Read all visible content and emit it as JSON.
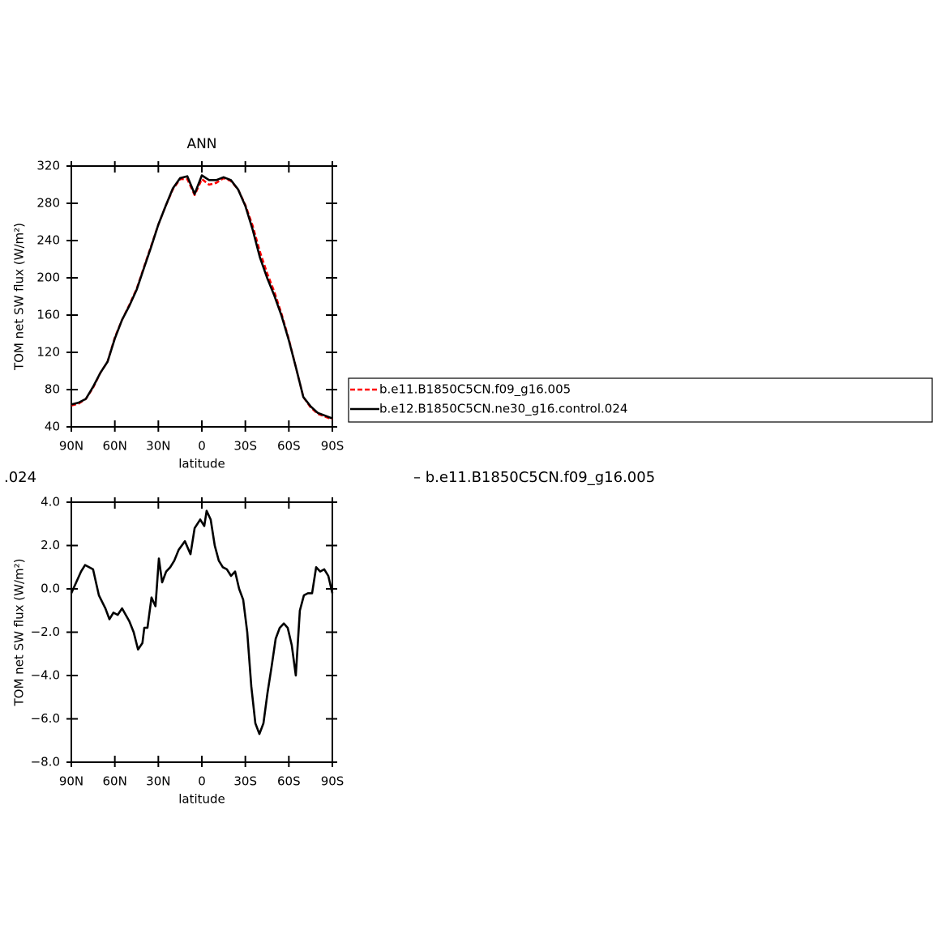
{
  "chart_data": [
    {
      "type": "line",
      "title": "ANN",
      "xlabel": "latitude",
      "ylabel": "TOM net SW flux (W/m²)",
      "x": [
        90,
        85,
        80,
        75,
        70,
        65,
        60,
        55,
        50,
        45,
        40,
        35,
        30,
        25,
        20,
        15,
        10,
        5,
        0,
        -5,
        -10,
        -15,
        -20,
        -25,
        -30,
        -35,
        -40,
        -45,
        -50,
        -55,
        -60,
        -65,
        -70,
        -75,
        -80,
        -85,
        -90
      ],
      "series": [
        {
          "name": "b.e11.B1850C5CN.f09_g16.005",
          "color": "#ff0000",
          "dash": true,
          "values": [
            63,
            65,
            70,
            82,
            98,
            110,
            136,
            155,
            171,
            188,
            211,
            234,
            257,
            277,
            295,
            306,
            306,
            289,
            306,
            300,
            302,
            307,
            304,
            295,
            278,
            256,
            228,
            205,
            185,
            161,
            134,
            103,
            72,
            61,
            54,
            51,
            48
          ]
        },
        {
          "name": "b.e12.B1850C5CN.ne30_g16.control.024",
          "color": "#000000",
          "dash": false,
          "values": [
            64,
            66,
            70,
            83,
            98,
            110,
            135,
            155,
            170,
            187,
            210,
            233,
            257,
            277,
            296,
            307,
            309,
            290,
            310,
            305,
            305,
            308,
            305,
            295,
            277,
            252,
            222,
            200,
            181,
            159,
            133,
            103,
            72,
            62,
            55,
            52,
            49
          ]
        }
      ],
      "xlim": [
        90,
        -90
      ],
      "xticks": [
        {
          "value": 90,
          "label": "90N"
        },
        {
          "value": 60,
          "label": "60N"
        },
        {
          "value": 30,
          "label": "30N"
        },
        0,
        {
          "value": -30,
          "label": "30S"
        },
        {
          "value": -60,
          "label": "60S"
        },
        {
          "value": -90,
          "label": "90S"
        }
      ],
      "ylim": [
        40,
        320
      ],
      "yticks": [
        40,
        80,
        120,
        160,
        200,
        240,
        280,
        320
      ]
    },
    {
      "type": "line",
      "xlabel": "latitude",
      "ylabel": "TOM net SW flux (W/m²)",
      "annotations": [
        ".024",
        "– b.e11.B1850C5CN.f09_g16.005"
      ],
      "x": [
        90,
        83.3,
        80.5,
        75,
        73,
        71,
        66.5,
        63.7,
        61,
        58,
        55,
        52.5,
        50,
        47,
        44,
        41,
        39.7,
        37.5,
        34.7,
        32,
        29.6,
        27.4,
        24.6,
        21.8,
        19,
        16,
        11.7,
        7.8,
        5,
        1.1,
        -1.7,
        -3.3,
        -6.1,
        -8.9,
        -11.7,
        -14.5,
        -17.3,
        -20.1,
        -22.9,
        -25.7,
        -28.5,
        -31.3,
        -34.1,
        -36.9,
        -39.7,
        -42.5,
        -45.3,
        -48.1,
        -50.9,
        -53.7,
        -56.5,
        -59.2,
        -62,
        -64.8,
        -67.6,
        -70.4,
        -73.2,
        -76,
        -78.8,
        -81.6,
        -84.4,
        -87.2,
        -90
      ],
      "series": [
        {
          "color": "#000000",
          "dash": false,
          "values": [
            -0.2,
            0.8,
            1.1,
            0.9,
            0.3,
            -0.3,
            -0.9,
            -1.4,
            -1.1,
            -1.2,
            -0.9,
            -1.2,
            -1.5,
            -2.0,
            -2.8,
            -2.5,
            -1.8,
            -1.8,
            -0.4,
            -0.8,
            1.4,
            0.3,
            0.8,
            1.0,
            1.3,
            1.8,
            2.2,
            1.6,
            2.8,
            3.2,
            2.9,
            3.6,
            3.2,
            2.0,
            1.3,
            1.0,
            0.9,
            0.6,
            0.8,
            0.0,
            -0.5,
            -2.0,
            -4.5,
            -6.2,
            -6.7,
            -6.2,
            -4.8,
            -3.6,
            -2.3,
            -1.8,
            -1.6,
            -1.8,
            -2.6,
            -4.0,
            -1.0,
            -0.3,
            -0.2,
            -0.2,
            1.0,
            0.8,
            0.9,
            0.6,
            -0.2
          ]
        }
      ],
      "xlim": [
        90,
        -90
      ],
      "xticks": [
        {
          "value": 90,
          "label": "90N"
        },
        {
          "value": 60,
          "label": "60N"
        },
        {
          "value": 30,
          "label": "30N"
        },
        0,
        {
          "value": -30,
          "label": "30S"
        },
        {
          "value": -60,
          "label": "60S"
        },
        {
          "value": -90,
          "label": "90S"
        }
      ],
      "ylim": [
        -8,
        4
      ],
      "yticks": [
        {
          "value": -8,
          "label": "−8.0"
        },
        {
          "value": -6,
          "label": "−6.0"
        },
        {
          "value": -4,
          "label": "−4.0"
        },
        {
          "value": -2,
          "label": "−2.0"
        },
        {
          "value": 0,
          "label": "0.0"
        },
        {
          "value": 2,
          "label": "2.0"
        },
        {
          "value": 4,
          "label": "4.0"
        }
      ]
    }
  ]
}
